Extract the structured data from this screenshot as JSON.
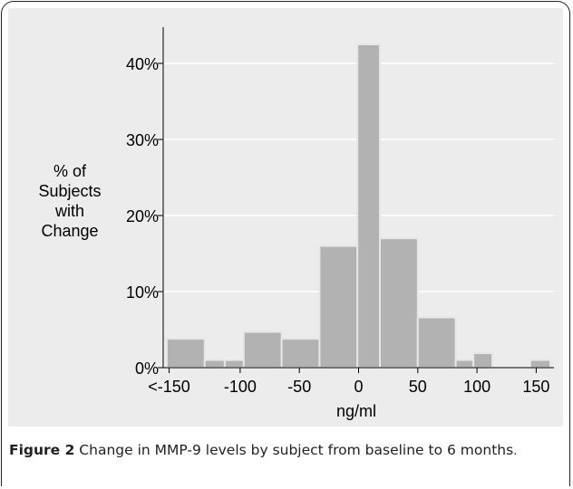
{
  "chart_data": {
    "type": "bar",
    "ylabel": "% of\nSubjects\nwith\nChange",
    "xlabel": "ng/ml",
    "ylim": [
      0,
      45
    ],
    "xlim": [
      -165,
      165
    ],
    "yticks": [
      0,
      10,
      20,
      30,
      40
    ],
    "ytick_labels": [
      "0%",
      "10%",
      "20%",
      "30%",
      "40%"
    ],
    "xticks": [
      -160,
      -100,
      -50,
      0,
      50,
      100,
      150
    ],
    "xtick_labels": [
      "<-150",
      "-100",
      "-50",
      "0",
      "50",
      "100",
      "150"
    ],
    "grid": "horizontal",
    "bar_color": "#b2b2b2",
    "bins": [
      {
        "x0": -162,
        "x1": -130,
        "value": 3.8
      },
      {
        "x0": -130,
        "x1": -113,
        "value": 1.0
      },
      {
        "x0": -113,
        "x1": -97,
        "value": 1.0
      },
      {
        "x0": -97,
        "x1": -65,
        "value": 4.7
      },
      {
        "x0": -65,
        "x1": -33,
        "value": 3.8
      },
      {
        "x0": -33,
        "x1": -1,
        "value": 16.0
      },
      {
        "x0": -1,
        "x1": 18,
        "value": 42.5
      },
      {
        "x0": 18,
        "x1": 50,
        "value": 17.0
      },
      {
        "x0": 50,
        "x1": 82,
        "value": 6.6
      },
      {
        "x0": 82,
        "x1": 97,
        "value": 1.0
      },
      {
        "x0": 97,
        "x1": 113,
        "value": 1.9
      },
      {
        "x0": 145,
        "x1": 162,
        "value": 1.0
      }
    ]
  },
  "caption": {
    "label": "Figure 2",
    "text": " Change in MMP-9 levels by subject from baseline to 6 months",
    "period": "."
  }
}
